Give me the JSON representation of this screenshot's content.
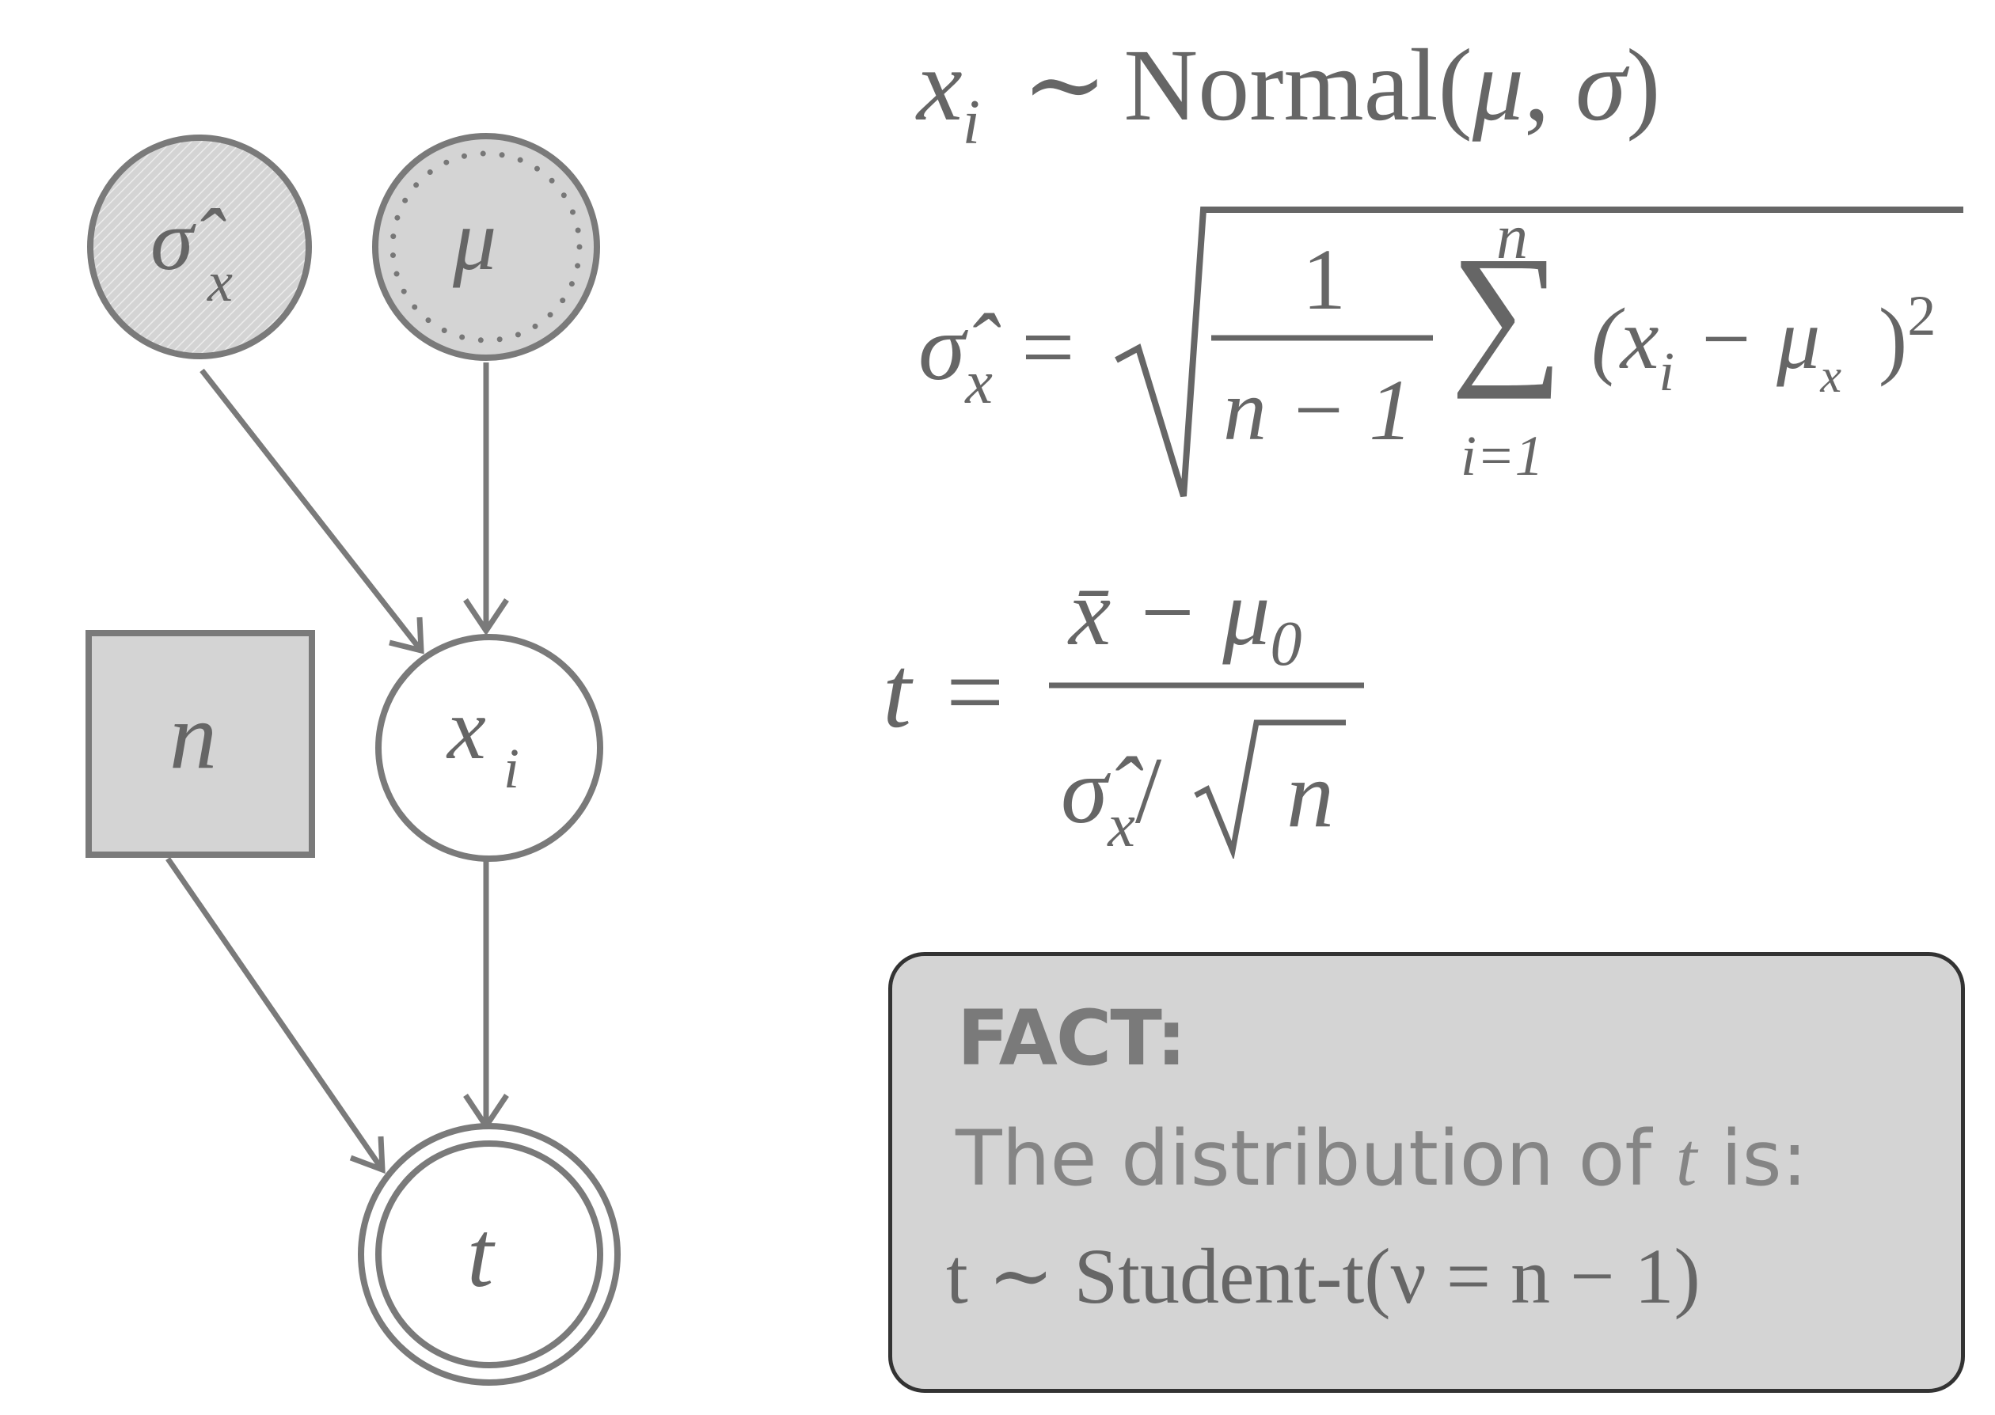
{
  "graph": {
    "nodes": [
      {
        "id": "sigma-hat-x",
        "label": "σ̂",
        "sub": "x",
        "type": "circle",
        "fill": "hatched"
      },
      {
        "id": "mu",
        "label": "μ",
        "sub": "",
        "type": "circle",
        "fill": "dotted"
      },
      {
        "id": "n",
        "label": "n",
        "sub": "",
        "type": "square",
        "fill": "gray"
      },
      {
        "id": "x-i",
        "label": "x",
        "sub": "i",
        "type": "circle",
        "fill": "white"
      },
      {
        "id": "t",
        "label": "t",
        "sub": "",
        "type": "double-circle",
        "fill": "white"
      }
    ],
    "edges": [
      {
        "from": "sigma-hat-x",
        "to": "x-i"
      },
      {
        "from": "mu",
        "to": "x-i"
      },
      {
        "from": "n",
        "to": "t"
      },
      {
        "from": "x-i",
        "to": "t"
      }
    ]
  },
  "equations": {
    "eq1": {
      "lhs": "x",
      "lhs_sub": "i",
      "rel": "∼",
      "rhs": "Normal(",
      "mu": "μ",
      "comma": ", ",
      "sigma": "σ",
      ")": ")"
    },
    "eq2": {
      "lhs": "σ̂",
      "lhs_sub": "x",
      "rel": "=",
      "frac_num": "1",
      "frac_den": "n − 1",
      "sum": "∑",
      "sum_top": "n",
      "sum_bottom": "i=1",
      "term": "(x",
      "term_sub": "i",
      "minus": " − μ",
      "mu_sub": "x⃗",
      "close": ")",
      "power": "2"
    },
    "eq3": {
      "lhs": "t",
      "rel": "=",
      "num": "x̄ − μ",
      "num_sub": "0",
      "den": "σ̂",
      "den_sub": "x",
      "den_slash": "/",
      "den_root": "n"
    }
  },
  "fact": {
    "title": "FACT:",
    "text_before": "The distribution of ",
    "text_var": "t",
    "text_after": " is:",
    "formula": "t ∼ Student-t(ν = n − 1)"
  },
  "colors": {
    "stroke": "#7a7a7a",
    "node_gray": "#d4d4d4",
    "text": "#666666",
    "box": "#d4d4d4"
  }
}
